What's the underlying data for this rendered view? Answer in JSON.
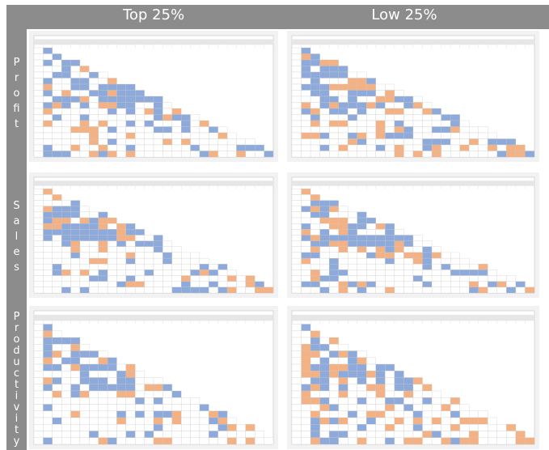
{
  "header": {
    "columns": [
      "Top 25%",
      "Low 25%"
    ]
  },
  "rows": [
    "Profit",
    "Sales",
    "Productivity"
  ]
}
